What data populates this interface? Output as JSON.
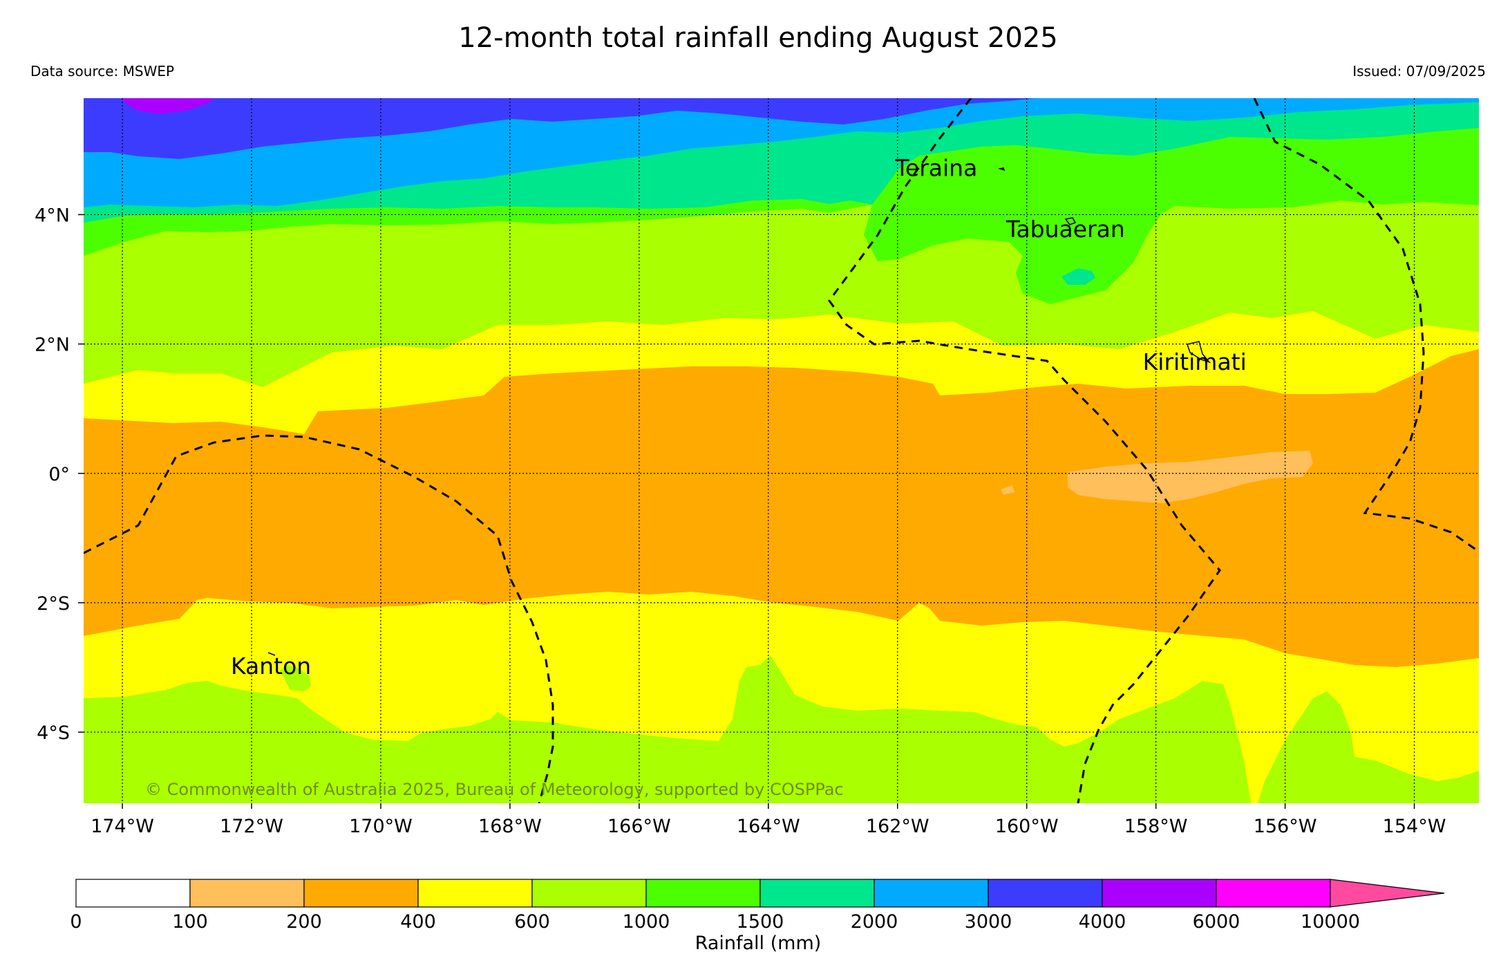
{
  "header": {
    "title": "12-month total rainfall ending August 2025",
    "source": "Data source: MSWEP",
    "issued": "Issued: 07/09/2025"
  },
  "map": {
    "lat_range": [
      -5.1,
      5.8
    ],
    "lon_range": [
      -174.6,
      -153.0
    ],
    "lat_ticks": [
      {
        "value": 4,
        "label": "4°N"
      },
      {
        "value": 2,
        "label": "2°N"
      },
      {
        "value": 0,
        "label": "0°"
      },
      {
        "value": -2,
        "label": "2°S"
      },
      {
        "value": -4,
        "label": "4°S"
      }
    ],
    "lon_ticks": [
      {
        "value": -174,
        "label": "174°W"
      },
      {
        "value": -172,
        "label": "172°W"
      },
      {
        "value": -170,
        "label": "170°W"
      },
      {
        "value": -168,
        "label": "168°W"
      },
      {
        "value": -166,
        "label": "166°W"
      },
      {
        "value": -164,
        "label": "164°W"
      },
      {
        "value": -162,
        "label": "162°W"
      },
      {
        "value": -160,
        "label": "160°W"
      },
      {
        "value": -158,
        "label": "158°W"
      },
      {
        "value": -156,
        "label": "156°W"
      },
      {
        "value": -154,
        "label": "154°W"
      }
    ],
    "places": [
      {
        "name": "Teraina",
        "lon": -161.4,
        "lat": 4.6
      },
      {
        "name": "Tabuaeran",
        "lon": -159.4,
        "lat": 3.65
      },
      {
        "name": "Kiritimati",
        "lon": -157.4,
        "lat": 1.6
      },
      {
        "name": "Kanton",
        "lon": -171.7,
        "lat": -3.1
      }
    ],
    "copyright": "© Commonwealth of Australia 2025, Bureau of Meteorology, supported by COSPPac"
  },
  "legend": {
    "title": "Rainfall (mm)",
    "bins": [
      {
        "label": "0",
        "color": "#ffffff"
      },
      {
        "label": "100",
        "color": "#ffbf5a"
      },
      {
        "label": "200",
        "color": "#ffaa00"
      },
      {
        "label": "400",
        "color": "#ffff00"
      },
      {
        "label": "600",
        "color": "#aaff00"
      },
      {
        "label": "1000",
        "color": "#4cff00"
      },
      {
        "label": "1500",
        "color": "#00e68c"
      },
      {
        "label": "2000",
        "color": "#00aaff"
      },
      {
        "label": "3000",
        "color": "#3c3cff"
      },
      {
        "label": "4000",
        "color": "#aa00ff"
      },
      {
        "label": "6000",
        "color": "#ff00ff"
      },
      {
        "label": "10000",
        "color": "#ff4aa0"
      }
    ]
  }
}
